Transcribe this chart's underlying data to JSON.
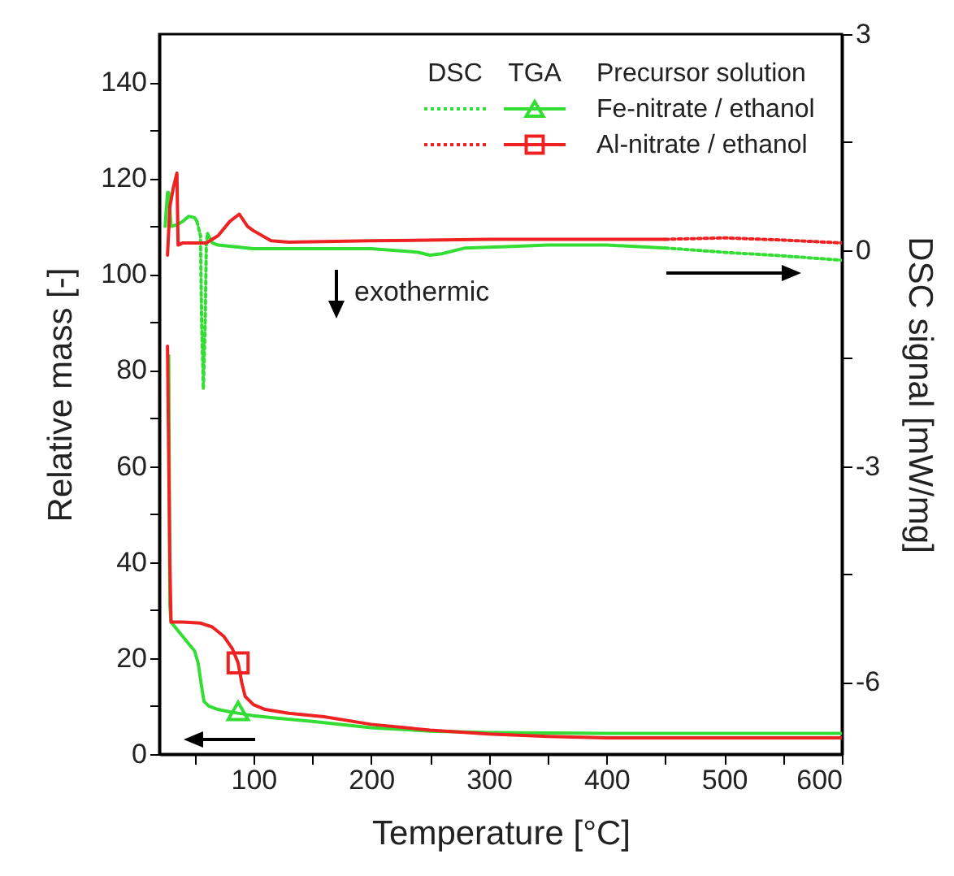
{
  "chart_data": {
    "type": "line",
    "xlabel": "Temperature [°C]",
    "ylabel": "Relative mass [-]",
    "y2label": "DSC signal [mW/mg]",
    "xlim": [
      20,
      600
    ],
    "xticks": [
      {
        "value": 50,
        "label": null
      },
      100,
      {
        "value": 150,
        "label": null
      },
      200,
      {
        "value": 250,
        "label": null
      },
      300,
      {
        "value": 350,
        "label": null
      },
      400,
      {
        "value": 450,
        "label": null
      },
      500,
      {
        "value": 550,
        "label": null
      },
      600
    ],
    "ylim": [
      0,
      150
    ],
    "yticks": [
      0,
      {
        "value": 10,
        "label": null
      },
      20,
      {
        "value": 30,
        "label": null
      },
      40,
      {
        "value": 50,
        "label": null
      },
      60,
      {
        "value": 70,
        "label": null
      },
      80,
      {
        "value": 90,
        "label": null
      },
      100,
      {
        "value": 110,
        "label": null
      },
      120,
      {
        "value": 130,
        "label": null
      },
      140
    ],
    "y2lim": [
      -7,
      3
    ],
    "y2ticks": [
      -6,
      {
        "value": -4.5,
        "label": null
      },
      -3,
      {
        "value": -1.5,
        "label": null
      },
      0,
      {
        "value": 1.5,
        "label": null
      },
      3
    ],
    "legend": "top right",
    "grid": false,
    "annotations": [
      "DSC",
      "TGA",
      "Precursor solution",
      "exothermic"
    ],
    "series": [
      {
        "name": "Fe-nitrate / ethanol",
        "axis": "y",
        "color": "#33dd33",
        "line_style": "solid",
        "x": [
          28,
          29,
          30,
          35,
          40,
          45,
          50,
          53,
          56,
          58,
          62,
          70,
          80,
          90,
          100,
          120,
          150,
          200,
          250,
          300,
          400,
          600
        ],
        "values": [
          83,
          31,
          27.5,
          26,
          24.5,
          23,
          21.5,
          19,
          14,
          11,
          10,
          9.3,
          8.8,
          8.4,
          8,
          7.5,
          6.8,
          5.5,
          4.8,
          4.5,
          4.3,
          4.3
        ]
      },
      {
        "name": "Al-nitrate / ethanol",
        "axis": "y",
        "color": "#ee2222",
        "line_style": "solid",
        "x": [
          27,
          29,
          30,
          40,
          55,
          65,
          75,
          82,
          87,
          90,
          93,
          100,
          110,
          130,
          160,
          200,
          250,
          300,
          350,
          400,
          600
        ],
        "values": [
          85,
          40,
          27.5,
          27.5,
          27.3,
          26.5,
          24.5,
          22,
          19,
          15,
          12,
          10.3,
          9.3,
          8.5,
          7.8,
          6.2,
          5,
          4.2,
          3.7,
          3.4,
          3.4
        ]
      },
      {
        "type": "scatter",
        "axis": "y",
        "color": "#33dd33",
        "marker": "triangle",
        "x": [
          87
        ],
        "values": [
          9
        ]
      },
      {
        "type": "scatter",
        "axis": "y",
        "color": "#ee2222",
        "marker": "square",
        "x": [
          87
        ],
        "values": [
          19
        ]
      },
      {
        "type": "line",
        "axis": "y2",
        "color": "#33dd33",
        "line_style": "solid",
        "x": [
          25,
          27,
          28,
          30,
          35,
          40,
          45,
          50,
          52,
          56,
          61,
          65,
          70,
          100,
          150,
          200,
          240,
          250,
          260,
          280,
          320,
          350,
          400,
          450
        ],
        "values": [
          0.33,
          0.8,
          0.8,
          0.33,
          0.35,
          0.4,
          0.47,
          0.45,
          0.4,
          null,
          0.23,
          0.1,
          0.07,
          0.02,
          0.02,
          0.02,
          -0.03,
          -0.07,
          -0.05,
          0.03,
          0.05,
          0.07,
          0.07,
          0.03
        ]
      },
      {
        "type": "line",
        "axis": "y2",
        "color": "#33dd33",
        "line_style": "dotted",
        "x": [
          52,
          55,
          56,
          57.5,
          59,
          60,
          61,
          100,
          450,
          500,
          550,
          600
        ],
        "values": [
          0.4,
          0.2,
          -1,
          -1.93,
          -1,
          0.1,
          0.23,
          null,
          0.03,
          -0.03,
          -0.08,
          -0.14
        ]
      },
      {
        "type": "line",
        "axis": "y2",
        "color": "#ee2222",
        "line_style": "solid",
        "x": [
          27,
          29,
          32,
          35,
          36,
          40,
          60,
          70,
          80,
          88,
          95,
          100,
          115,
          130,
          200,
          300,
          450
        ],
        "values": [
          -0.07,
          0.6,
          0.87,
          1.07,
          0.07,
          0.1,
          0.1,
          0.2,
          0.4,
          0.5,
          0.33,
          0.27,
          0.13,
          0.11,
          0.13,
          0.15,
          0.15
        ]
      },
      {
        "type": "line",
        "axis": "y2",
        "color": "#ee2222",
        "line_style": "dotted",
        "x": [
          450,
          500,
          550,
          600
        ],
        "values": [
          0.15,
          0.17,
          0.14,
          0.1
        ]
      }
    ]
  }
}
